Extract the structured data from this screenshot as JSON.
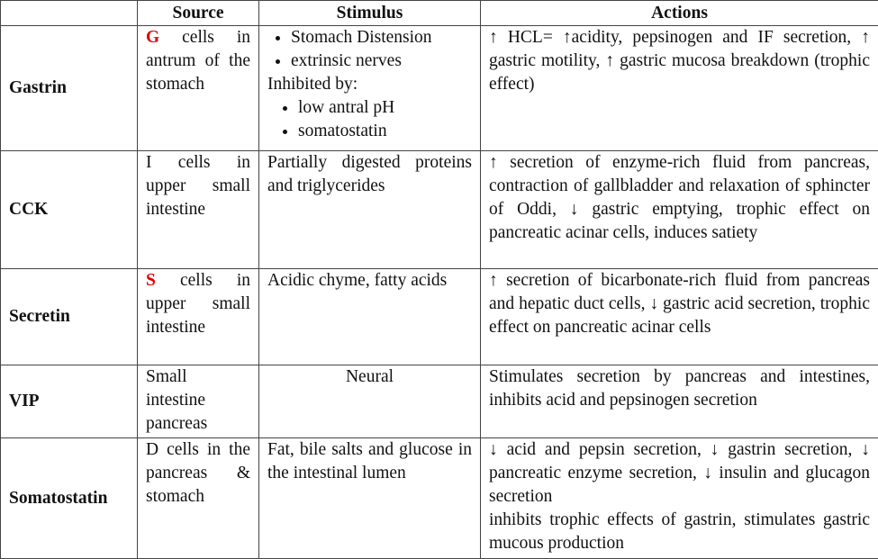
{
  "table": {
    "header": [
      "Source",
      "Stimulus",
      "Actions"
    ],
    "rows": [
      {
        "hormone": "Gastrin",
        "source": {
          "highlight": "G",
          "text": "cells in antrum of the stomach"
        },
        "stimulus": {
          "items": [
            "Stomach Distension",
            "extrinsic nerves"
          ],
          "inhibited_label": "Inhibited by:",
          "inhibited_items": [
            "low antral pH",
            "somatostatin"
          ]
        },
        "actions": [
          "↑ HCL= ↑acidity, pepsinogen and IF secretion, ↑ gastric motility, ↑ gastric mucosa breakdown (trophic effect)"
        ]
      },
      {
        "hormone": "CCK",
        "source": {
          "text": "I cells in upper small intestine"
        },
        "stimulus": "Partially digested proteins and triglycerides",
        "actions": [
          "↑ secretion of enzyme-rich fluid from pancreas, contraction of gallbladder and relaxation of sphincter of Oddi, ↓ gastric emptying, trophic effect on pancreatic acinar cells, induces satiety"
        ]
      },
      {
        "hormone": "Secretin",
        "source": {
          "highlight": "S",
          "text": "cells in upper small intestine"
        },
        "stimulus": "Acidic chyme, fatty acids",
        "actions": [
          "↑ secretion of bicarbonate-rich fluid from pancreas and hepatic duct cells, ↓ gastric acid secretion, trophic effect on pancreatic acinar cells"
        ]
      },
      {
        "hormone": "VIP",
        "source": {
          "text": "Small intestine pancreas"
        },
        "stimulus": "Neural",
        "actions": [
          "Stimulates secretion by pancreas and intestines, inhibits acid and pepsinogen secretion"
        ]
      },
      {
        "hormone": "Somatostatin",
        "source": {
          "text": "D cells in the pancreas & stomach"
        },
        "stimulus": "Fat, bile salts and glucose in the intestinal lumen",
        "actions": [
          "↓ acid and pepsin secretion, ↓ gastrin secretion, ↓ pancreatic enzyme secretion, ↓ insulin and glucagon secretion",
          "inhibits trophic effects of gastrin, stimulates gastric mucous production"
        ]
      }
    ]
  }
}
